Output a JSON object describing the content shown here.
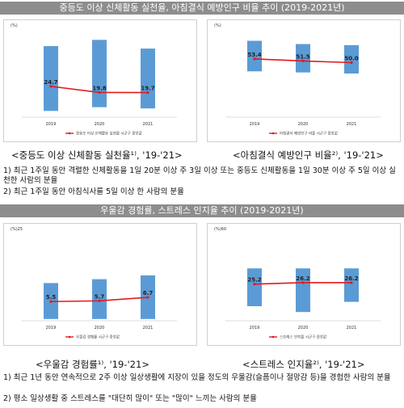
{
  "section1": {
    "title": "중등도 이상 신체활동 실천율, 아침결식 예방인구 비율 추이 (2019-2021년)",
    "notes": [
      "1) 최근 1주일 동안 격렬한 신체활동을 1일 20분 이상 주 3일 이상 또는 중등도 신체활동을 1일 30분 이상 주 5일 이상 실천한 사람의 분율",
      "2) 최근 1주일 동안 아침식사를 5일 이상 한 사람의 분율"
    ]
  },
  "section2": {
    "title": "우울감 경험률, 스트레스 인지율 추이 (2019-2021년)",
    "notes": [
      "1) 최근 1년 동안 연속적으로 2주 이상 일상생활에 지장이 있을 정도의 우울감(슬픔이나 절망감 등)을 경험한 사람의 분율",
      "2) 평소 일상생활 중 스트레스를 \"대단히 많이\" 또는 \"많이\" 느끼는 사람의 분율"
    ]
  },
  "chart_data": [
    {
      "type": "bar",
      "caption": "<중등도 이상 신체활동 실천율¹⁾, '19-'21>",
      "unit": "(%)",
      "categories": [
        "2019",
        "2020",
        "2021"
      ],
      "legend": "중등도 이상 신체활동 실천율 시군구 중앙값",
      "line_values": [
        24.7,
        19.8,
        19.7
      ],
      "range_high": [
        57,
        62,
        55
      ],
      "range_low": [
        5,
        8,
        7
      ],
      "ylim": [
        0,
        70
      ],
      "colors": {
        "bar": "#5b9bd5",
        "line": "#e31a1c"
      }
    },
    {
      "type": "bar",
      "caption": "<아침결식 예방인구 비율²⁾, '19-'21>",
      "unit": "(%)",
      "categories": [
        "2019",
        "2020",
        "2021"
      ],
      "legend": "아침결식 예방인구 비율 시군구 중앙값",
      "line_values": [
        53.4,
        51.5,
        50.0
      ],
      "range_high": [
        70,
        67,
        66
      ],
      "range_low": [
        42,
        41,
        40
      ],
      "ylim": [
        0,
        80
      ],
      "colors": {
        "bar": "#5b9bd5",
        "line": "#e31a1c"
      }
    },
    {
      "type": "bar",
      "caption": "<우울감 경험률¹⁾, '19-'21>",
      "unit": "(%)25",
      "categories": [
        "2019",
        "2020",
        "2021"
      ],
      "legend": "우울감 경험률 시군구 중앙값",
      "line_values": [
        5.5,
        5.7,
        6.7
      ],
      "range_high": [
        10.8,
        11.9,
        13.0
      ],
      "range_low": [
        0.5,
        0.5,
        0.5
      ],
      "ylim": [
        0,
        25
      ],
      "colors": {
        "bar": "#5b9bd5",
        "line": "#e31a1c"
      }
    },
    {
      "type": "bar",
      "caption": "<스트레스 인지율²⁾, '19-'21>",
      "unit": "(%)60",
      "categories": [
        "2019",
        "2020",
        "2021"
      ],
      "legend": "스트레스 인지율 시군구 중앙값",
      "line_values": [
        25.2,
        26.2,
        26.2
      ],
      "range_high": [
        36,
        36,
        36
      ],
      "range_low": [
        10,
        6,
        13
      ],
      "ylim": [
        0,
        60
      ],
      "colors": {
        "bar": "#5b9bd5",
        "line": "#e31a1c"
      }
    }
  ]
}
